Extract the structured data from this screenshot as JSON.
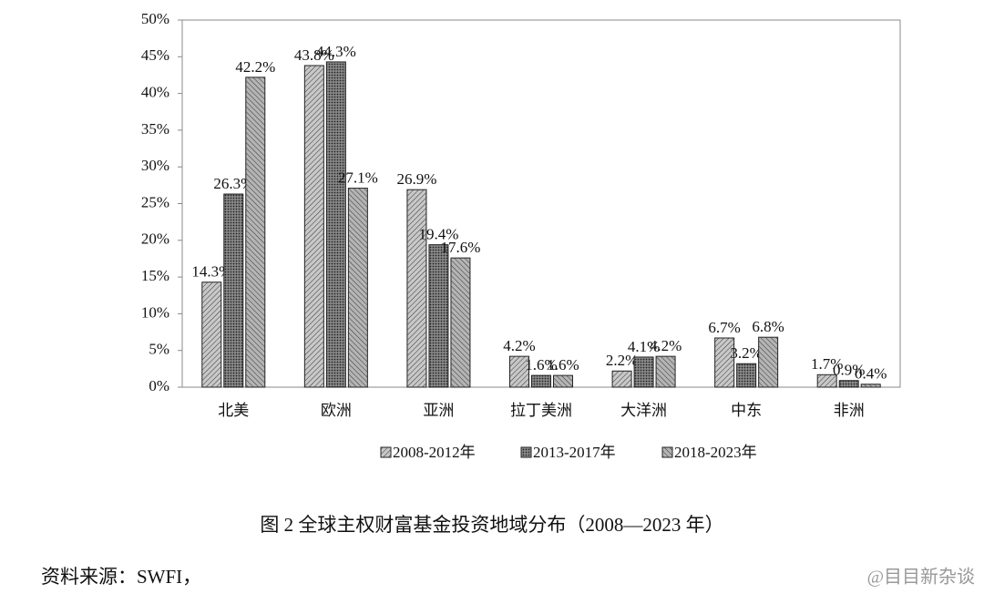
{
  "chart_data": {
    "type": "bar",
    "categories": [
      "北美",
      "欧洲",
      "亚洲",
      "拉丁美洲",
      "大洋洲",
      "中东",
      "非洲"
    ],
    "series": [
      {
        "name": "2008-2012年",
        "color": "#c8c8c8",
        "values": [
          14.3,
          43.8,
          26.9,
          4.2,
          2.2,
          6.7,
          1.7
        ],
        "value_labels": [
          "14.3%",
          "43.8%",
          "26.9%",
          "4.2%",
          "2.2%",
          "6.7%",
          "1.7%"
        ]
      },
      {
        "name": "2013-2017年",
        "color": "#8a8a8a",
        "values": [
          26.3,
          44.3,
          19.4,
          1.6,
          4.1,
          3.2,
          0.9
        ],
        "value_labels": [
          "26.3%",
          "44.3%",
          "19.4%",
          "1.6%",
          "4.1%",
          "3.2%",
          "0.9%"
        ]
      },
      {
        "name": "2018-2023年",
        "color": "#b4b4b4",
        "values": [
          42.2,
          27.1,
          17.6,
          1.6,
          4.2,
          6.8,
          0.4
        ],
        "value_labels": [
          "42.2%",
          "27.1%",
          "17.6%",
          "1.6%",
          "4.2%",
          "6.8%",
          "0.4%"
        ]
      }
    ],
    "ylim": [
      0,
      50
    ],
    "yticks": [
      {
        "value": 0,
        "label": "0%"
      },
      {
        "value": 5,
        "label": "5%"
      },
      {
        "value": 10,
        "label": "10%"
      },
      {
        "value": 15,
        "label": "15%"
      },
      {
        "value": 20,
        "label": "20%"
      },
      {
        "value": 25,
        "label": "25%"
      },
      {
        "value": 30,
        "label": "30%"
      },
      {
        "value": 35,
        "label": "35%"
      },
      {
        "value": 40,
        "label": "40%"
      },
      {
        "value": 45,
        "label": "45%"
      },
      {
        "value": 50,
        "label": "50%"
      }
    ],
    "caption": "图 2 全球主权财富基金投资地域分布（2008—2023 年）",
    "source": "资料来源：SWFI，",
    "watermark": "@目目新杂谈"
  }
}
